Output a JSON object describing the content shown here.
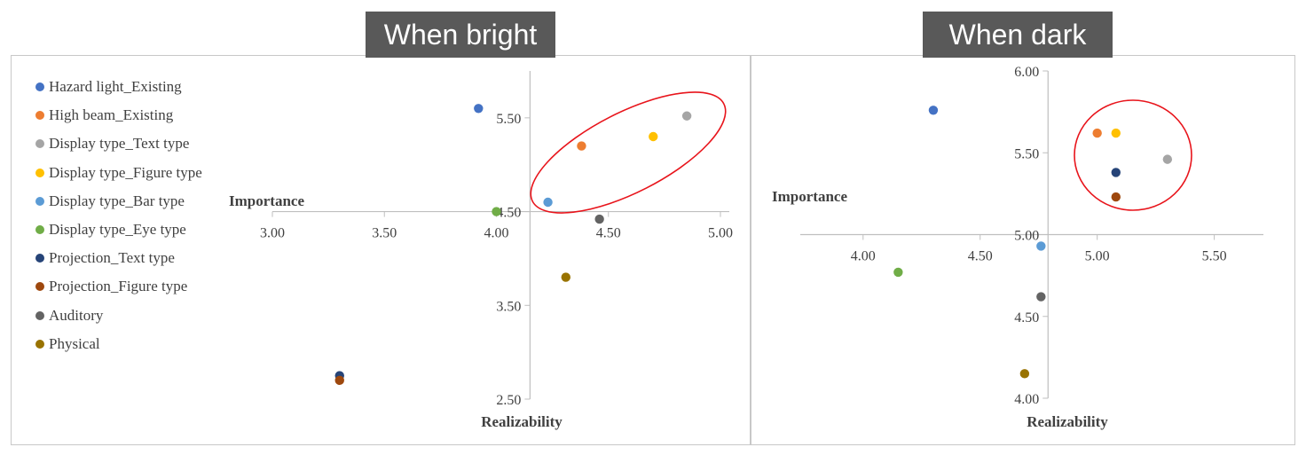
{
  "panels": {
    "left": {
      "title": "When bright"
    },
    "right": {
      "title": "When dark"
    }
  },
  "legend": [
    {
      "label": "Hazard light_Existing",
      "color": "#4472c4"
    },
    {
      "label": "High beam_Existing",
      "color": "#ed7d31"
    },
    {
      "label": "Display type_Text type",
      "color": "#a5a5a5"
    },
    {
      "label": "Display type_Figure type",
      "color": "#ffc000"
    },
    {
      "label": "Display type_Bar type",
      "color": "#5b9bd5"
    },
    {
      "label": "Display type_Eye type",
      "color": "#70ad47"
    },
    {
      "label": "Projection_Text type",
      "color": "#264478"
    },
    {
      "label": "Projection_Figure type",
      "color": "#9e480e"
    },
    {
      "label": "Auditory",
      "color": "#636363"
    },
    {
      "label": "Physical",
      "color": "#997300"
    }
  ],
  "chart_data": [
    {
      "type": "scatter",
      "title": "When bright",
      "xlabel": "Realizability",
      "ylabel": "Importance",
      "xlim": [
        3.0,
        5.0
      ],
      "ylim": [
        2.5,
        6.0
      ],
      "x_crosses_y_at": 4.5,
      "y_crosses_x_at": 4.15,
      "xticks": [
        "3.00",
        "3.50",
        "4.00",
        "4.50",
        "5.00"
      ],
      "yticks": [
        "2.50",
        "3.50",
        "4.50",
        "5.50"
      ],
      "grid": false,
      "legend_position": "left",
      "annotation": "red ellipse around Display type, High beam points",
      "series": [
        {
          "name": "Hazard light_Existing",
          "x": 3.92,
          "y": 5.6
        },
        {
          "name": "High beam_Existing",
          "x": 4.38,
          "y": 5.2
        },
        {
          "name": "Display type_Text type",
          "x": 4.85,
          "y": 5.52
        },
        {
          "name": "Display type_Figure type",
          "x": 4.7,
          "y": 5.3
        },
        {
          "name": "Display type_Bar type",
          "x": 4.23,
          "y": 4.6
        },
        {
          "name": "Display type_Eye type",
          "x": 4.0,
          "y": 4.5
        },
        {
          "name": "Projection_Text type",
          "x": 3.3,
          "y": 2.75
        },
        {
          "name": "Projection_Figure type",
          "x": 3.3,
          "y": 2.7
        },
        {
          "name": "Auditory",
          "x": 4.46,
          "y": 4.42
        },
        {
          "name": "Physical",
          "x": 4.31,
          "y": 3.8
        }
      ]
    },
    {
      "type": "scatter",
      "title": "When dark",
      "xlabel": "Realizability",
      "ylabel": "Importance",
      "xlim": [
        3.8,
        5.6
      ],
      "ylim": [
        4.0,
        6.0
      ],
      "x_crosses_y_at": 5.0,
      "y_crosses_x_at": 4.79,
      "xticks": [
        "4.00",
        "4.50",
        "5.00",
        "5.50"
      ],
      "yticks": [
        "4.00",
        "4.50",
        "5.00",
        "5.50",
        "6.00"
      ],
      "grid": false,
      "annotation": "red circle around Display type, High beam, Projection points",
      "series": [
        {
          "name": "Hazard light_Existing",
          "x": 4.3,
          "y": 5.76
        },
        {
          "name": "High beam_Existing",
          "x": 5.0,
          "y": 5.62
        },
        {
          "name": "Display type_Text type",
          "x": 5.3,
          "y": 5.46
        },
        {
          "name": "Display type_Figure type",
          "x": 5.08,
          "y": 5.62
        },
        {
          "name": "Display type_Bar type",
          "x": 4.76,
          "y": 4.93
        },
        {
          "name": "Display type_Eye type",
          "x": 4.15,
          "y": 4.77
        },
        {
          "name": "Projection_Text type",
          "x": 5.08,
          "y": 5.38
        },
        {
          "name": "Projection_Figure type",
          "x": 5.08,
          "y": 5.23
        },
        {
          "name": "Auditory",
          "x": 4.76,
          "y": 4.62
        },
        {
          "name": "Physical",
          "x": 4.69,
          "y": 4.15
        }
      ]
    }
  ]
}
